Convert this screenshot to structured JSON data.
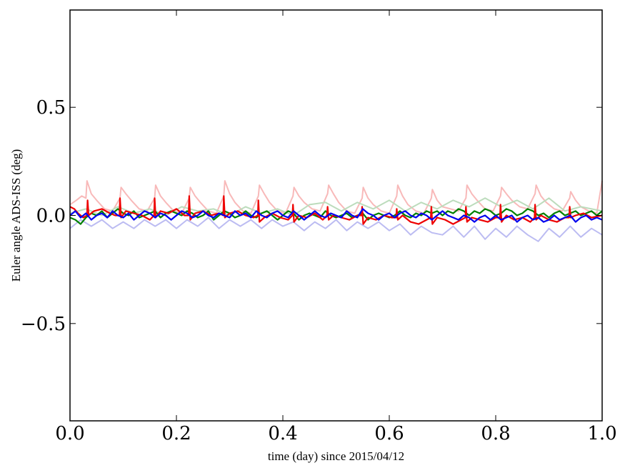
{
  "chart_data": {
    "type": "line",
    "title": "",
    "xlabel": "time (day) since 2015/04/12",
    "ylabel": "Euler angle ADS-ISS (deg)",
    "xlim": [
      0.0,
      1.0
    ],
    "ylim": [
      -0.95,
      0.95
    ],
    "xticks": [
      0.0,
      0.2,
      0.4,
      0.6,
      0.8,
      1.0
    ],
    "xtick_labels": [
      "0.0",
      "0.2",
      "0.4",
      "0.6",
      "0.8",
      "1.0"
    ],
    "yticks": [
      -0.5,
      0.0,
      0.5
    ],
    "ytick_labels": [
      "−0.5",
      "0.0",
      "0.5"
    ],
    "grid": false,
    "legend": "none",
    "series": [
      {
        "color": "#f8b9b9",
        "width": 2,
        "x": [
          0.0,
          0.012,
          0.022,
          0.03,
          0.032,
          0.04,
          0.05,
          0.065,
          0.08,
          0.094,
          0.096,
          0.105,
          0.115,
          0.13,
          0.145,
          0.159,
          0.161,
          0.17,
          0.18,
          0.195,
          0.21,
          0.224,
          0.226,
          0.235,
          0.245,
          0.26,
          0.275,
          0.289,
          0.291,
          0.3,
          0.31,
          0.325,
          0.34,
          0.354,
          0.356,
          0.365,
          0.375,
          0.39,
          0.405,
          0.419,
          0.421,
          0.43,
          0.44,
          0.455,
          0.47,
          0.484,
          0.486,
          0.495,
          0.505,
          0.52,
          0.535,
          0.549,
          0.551,
          0.56,
          0.57,
          0.585,
          0.6,
          0.614,
          0.616,
          0.625,
          0.635,
          0.65,
          0.665,
          0.679,
          0.681,
          0.69,
          0.7,
          0.715,
          0.73,
          0.744,
          0.746,
          0.755,
          0.765,
          0.78,
          0.795,
          0.809,
          0.811,
          0.82,
          0.83,
          0.845,
          0.86,
          0.874,
          0.876,
          0.885,
          0.895,
          0.91,
          0.925,
          0.939,
          0.941,
          0.95,
          0.96,
          0.975,
          0.99,
          1.0
        ],
        "y": [
          0.05,
          0.07,
          0.09,
          0.08,
          0.16,
          0.1,
          0.07,
          0.03,
          0.02,
          0.08,
          0.13,
          0.1,
          0.07,
          0.03,
          0.02,
          0.08,
          0.14,
          0.09,
          0.06,
          0.02,
          0.01,
          0.08,
          0.13,
          0.09,
          0.06,
          0.02,
          0.01,
          0.09,
          0.16,
          0.1,
          0.06,
          0.02,
          0.01,
          0.09,
          0.14,
          0.1,
          0.06,
          0.02,
          0.01,
          0.09,
          0.13,
          0.09,
          0.06,
          0.03,
          0.02,
          0.1,
          0.14,
          0.1,
          0.06,
          0.02,
          0.01,
          0.08,
          0.13,
          0.08,
          0.05,
          0.02,
          0.01,
          0.09,
          0.14,
          0.09,
          0.05,
          0.02,
          0.01,
          0.08,
          0.12,
          0.07,
          0.04,
          0.03,
          0.02,
          0.08,
          0.14,
          0.1,
          0.07,
          0.03,
          0.02,
          0.09,
          0.13,
          0.1,
          0.07,
          0.04,
          0.03,
          0.1,
          0.14,
          0.09,
          0.06,
          0.03,
          0.02,
          0.08,
          0.11,
          0.07,
          0.04,
          0.02,
          0.01,
          0.16
        ]
      },
      {
        "color": "#bcdcbc",
        "width": 2,
        "x": [
          0.0,
          0.03,
          0.06,
          0.09,
          0.12,
          0.15,
          0.18,
          0.21,
          0.24,
          0.27,
          0.3,
          0.33,
          0.36,
          0.39,
          0.42,
          0.45,
          0.48,
          0.51,
          0.54,
          0.57,
          0.6,
          0.63,
          0.66,
          0.69,
          0.72,
          0.75,
          0.78,
          0.81,
          0.84,
          0.87,
          0.9,
          0.93,
          0.96,
          1.0
        ],
        "y": [
          0.01,
          0.03,
          0.0,
          0.04,
          0.01,
          0.03,
          0.0,
          0.04,
          0.02,
          0.03,
          0.0,
          0.04,
          0.01,
          0.03,
          0.0,
          0.05,
          0.06,
          0.02,
          0.06,
          0.03,
          0.07,
          0.02,
          0.06,
          0.03,
          0.07,
          0.04,
          0.08,
          0.04,
          0.07,
          0.03,
          0.08,
          0.02,
          0.04,
          0.02
        ]
      },
      {
        "color": "#bcbcf2",
        "width": 2,
        "x": [
          0.0,
          0.02,
          0.04,
          0.06,
          0.08,
          0.1,
          0.12,
          0.14,
          0.16,
          0.18,
          0.2,
          0.22,
          0.24,
          0.26,
          0.28,
          0.3,
          0.32,
          0.34,
          0.36,
          0.38,
          0.4,
          0.42,
          0.44,
          0.46,
          0.48,
          0.5,
          0.52,
          0.54,
          0.56,
          0.58,
          0.6,
          0.62,
          0.64,
          0.66,
          0.68,
          0.7,
          0.72,
          0.74,
          0.76,
          0.78,
          0.8,
          0.82,
          0.84,
          0.86,
          0.88,
          0.9,
          0.92,
          0.94,
          0.96,
          0.98,
          1.0
        ],
        "y": [
          -0.06,
          -0.02,
          -0.05,
          -0.02,
          -0.06,
          -0.03,
          -0.06,
          -0.02,
          -0.05,
          -0.02,
          -0.06,
          -0.02,
          -0.05,
          -0.01,
          -0.06,
          -0.02,
          -0.05,
          -0.02,
          -0.06,
          -0.02,
          -0.05,
          -0.03,
          -0.07,
          -0.03,
          -0.06,
          -0.02,
          -0.07,
          -0.03,
          -0.06,
          -0.03,
          -0.07,
          -0.04,
          -0.09,
          -0.05,
          -0.08,
          -0.09,
          -0.05,
          -0.1,
          -0.05,
          -0.11,
          -0.06,
          -0.1,
          -0.05,
          -0.09,
          -0.12,
          -0.06,
          -0.1,
          -0.05,
          -0.1,
          -0.06,
          -0.09
        ]
      },
      {
        "color": "#008000",
        "width": 2.2,
        "x": [
          0.0,
          0.01,
          0.02,
          0.03,
          0.04,
          0.05,
          0.06,
          0.07,
          0.08,
          0.09,
          0.1,
          0.11,
          0.12,
          0.13,
          0.14,
          0.15,
          0.16,
          0.17,
          0.18,
          0.19,
          0.2,
          0.21,
          0.22,
          0.23,
          0.24,
          0.25,
          0.26,
          0.27,
          0.28,
          0.29,
          0.3,
          0.31,
          0.32,
          0.33,
          0.34,
          0.35,
          0.36,
          0.37,
          0.38,
          0.39,
          0.4,
          0.41,
          0.42,
          0.43,
          0.44,
          0.45,
          0.46,
          0.47,
          0.48,
          0.49,
          0.5,
          0.51,
          0.52,
          0.53,
          0.54,
          0.55,
          0.56,
          0.57,
          0.58,
          0.59,
          0.6,
          0.61,
          0.62,
          0.63,
          0.64,
          0.65,
          0.66,
          0.67,
          0.68,
          0.69,
          0.7,
          0.71,
          0.72,
          0.73,
          0.74,
          0.75,
          0.76,
          0.77,
          0.78,
          0.79,
          0.8,
          0.81,
          0.82,
          0.83,
          0.84,
          0.85,
          0.86,
          0.87,
          0.88,
          0.89,
          0.9,
          0.91,
          0.92,
          0.93,
          0.94,
          0.95,
          0.96,
          0.97,
          0.98,
          0.99,
          1.0
        ],
        "y": [
          -0.01,
          -0.02,
          -0.04,
          -0.01,
          0.01,
          0.0,
          0.02,
          -0.01,
          0.01,
          0.03,
          0.01,
          0.0,
          0.02,
          -0.01,
          0.0,
          0.01,
          0.02,
          -0.01,
          0.01,
          0.02,
          0.01,
          0.0,
          0.02,
          0.01,
          -0.01,
          0.0,
          0.02,
          -0.02,
          0.0,
          0.02,
          0.01,
          -0.01,
          0.0,
          0.02,
          0.0,
          -0.01,
          0.01,
          0.02,
          0.0,
          -0.02,
          0.0,
          0.02,
          0.01,
          -0.02,
          0.0,
          0.01,
          0.0,
          -0.01,
          0.02,
          0.0,
          -0.01,
          0.0,
          0.01,
          -0.01,
          0.0,
          0.01,
          -0.02,
          0.0,
          0.01,
          0.0,
          -0.01,
          0.0,
          0.02,
          0.0,
          -0.01,
          0.01,
          0.0,
          0.02,
          0.01,
          0.02,
          0.0,
          0.02,
          0.01,
          0.03,
          0.02,
          0.0,
          0.02,
          0.01,
          0.03,
          0.02,
          0.0,
          0.01,
          0.03,
          0.02,
          0.0,
          0.01,
          0.03,
          0.02,
          0.0,
          0.01,
          -0.01,
          0.01,
          0.02,
          0.0,
          0.01,
          0.02,
          0.0,
          0.01,
          0.02,
          0.0,
          0.02
        ]
      },
      {
        "color": "#ee0000",
        "width": 2.2,
        "x": [
          0.0,
          0.008,
          0.015,
          0.025,
          0.032,
          0.033,
          0.035,
          0.045,
          0.06,
          0.075,
          0.085,
          0.093,
          0.094,
          0.096,
          0.105,
          0.12,
          0.135,
          0.15,
          0.158,
          0.159,
          0.161,
          0.17,
          0.185,
          0.2,
          0.215,
          0.223,
          0.224,
          0.226,
          0.235,
          0.25,
          0.265,
          0.28,
          0.288,
          0.289,
          0.291,
          0.3,
          0.315,
          0.33,
          0.345,
          0.353,
          0.354,
          0.356,
          0.365,
          0.38,
          0.395,
          0.41,
          0.418,
          0.419,
          0.421,
          0.43,
          0.445,
          0.46,
          0.475,
          0.483,
          0.484,
          0.486,
          0.495,
          0.51,
          0.525,
          0.54,
          0.548,
          0.549,
          0.551,
          0.56,
          0.575,
          0.59,
          0.605,
          0.613,
          0.614,
          0.616,
          0.625,
          0.64,
          0.655,
          0.67,
          0.678,
          0.679,
          0.681,
          0.69,
          0.705,
          0.72,
          0.735,
          0.743,
          0.744,
          0.746,
          0.755,
          0.77,
          0.785,
          0.8,
          0.808,
          0.809,
          0.811,
          0.82,
          0.835,
          0.85,
          0.865,
          0.873,
          0.874,
          0.876,
          0.885,
          0.9,
          0.915,
          0.93,
          0.938,
          0.939,
          0.941,
          0.95,
          0.965,
          0.98,
          1.0
        ],
        "y": [
          0.04,
          0.03,
          0.01,
          -0.01,
          0.0,
          0.07,
          0.0,
          0.02,
          0.03,
          0.01,
          0.0,
          0.0,
          0.08,
          -0.01,
          0.02,
          0.01,
          0.0,
          -0.02,
          0.0,
          0.08,
          -0.01,
          0.02,
          0.01,
          0.03,
          0.0,
          0.0,
          0.09,
          -0.02,
          0.01,
          0.02,
          0.0,
          0.01,
          0.0,
          0.09,
          -0.01,
          0.01,
          0.02,
          0.0,
          -0.01,
          0.0,
          0.07,
          -0.03,
          -0.01,
          0.01,
          -0.01,
          -0.02,
          0.0,
          0.05,
          -0.03,
          0.0,
          -0.01,
          0.01,
          -0.02,
          0.0,
          0.04,
          -0.02,
          0.0,
          -0.01,
          -0.02,
          0.0,
          0.0,
          0.04,
          -0.04,
          -0.01,
          -0.02,
          0.0,
          -0.01,
          -0.01,
          0.03,
          -0.02,
          0.0,
          -0.03,
          -0.04,
          -0.02,
          -0.01,
          0.04,
          -0.04,
          -0.01,
          -0.02,
          -0.04,
          -0.02,
          -0.01,
          0.04,
          -0.03,
          -0.01,
          -0.02,
          -0.03,
          -0.01,
          -0.01,
          0.05,
          -0.03,
          0.0,
          -0.02,
          -0.01,
          -0.03,
          -0.01,
          0.05,
          -0.02,
          0.0,
          -0.02,
          -0.03,
          -0.01,
          -0.01,
          0.04,
          -0.01,
          0.0,
          0.01,
          -0.01,
          0.0
        ]
      },
      {
        "color": "#0000ee",
        "width": 2.2,
        "x": [
          0.0,
          0.01,
          0.02,
          0.03,
          0.04,
          0.05,
          0.06,
          0.07,
          0.08,
          0.09,
          0.1,
          0.11,
          0.12,
          0.13,
          0.14,
          0.15,
          0.16,
          0.17,
          0.18,
          0.19,
          0.2,
          0.21,
          0.22,
          0.23,
          0.24,
          0.25,
          0.26,
          0.27,
          0.28,
          0.29,
          0.3,
          0.31,
          0.32,
          0.33,
          0.34,
          0.35,
          0.36,
          0.37,
          0.38,
          0.39,
          0.4,
          0.41,
          0.42,
          0.43,
          0.44,
          0.45,
          0.46,
          0.47,
          0.48,
          0.49,
          0.5,
          0.51,
          0.52,
          0.53,
          0.54,
          0.55,
          0.56,
          0.57,
          0.58,
          0.59,
          0.6,
          0.61,
          0.62,
          0.63,
          0.64,
          0.65,
          0.66,
          0.67,
          0.68,
          0.69,
          0.7,
          0.71,
          0.72,
          0.73,
          0.74,
          0.75,
          0.76,
          0.77,
          0.78,
          0.79,
          0.8,
          0.81,
          0.82,
          0.83,
          0.84,
          0.85,
          0.86,
          0.87,
          0.88,
          0.89,
          0.9,
          0.91,
          0.92,
          0.93,
          0.94,
          0.95,
          0.96,
          0.97,
          0.98,
          0.99,
          1.0
        ],
        "y": [
          0.0,
          0.02,
          -0.01,
          0.01,
          -0.02,
          0.0,
          0.01,
          -0.01,
          0.02,
          0.0,
          -0.01,
          0.01,
          -0.02,
          0.0,
          0.02,
          0.01,
          -0.01,
          0.01,
          0.0,
          -0.02,
          0.0,
          0.02,
          0.01,
          -0.01,
          0.0,
          0.02,
          0.0,
          -0.01,
          0.01,
          0.0,
          -0.01,
          0.02,
          0.0,
          0.01,
          -0.01,
          0.02,
          0.0,
          -0.01,
          0.01,
          0.02,
          0.0,
          -0.01,
          0.02,
          0.0,
          -0.02,
          0.0,
          0.02,
          0.0,
          -0.01,
          0.01,
          0.0,
          -0.01,
          0.02,
          0.0,
          -0.01,
          0.03,
          0.01,
          0.0,
          -0.02,
          0.0,
          0.01,
          -0.01,
          0.01,
          0.02,
          0.0,
          -0.01,
          0.01,
          0.0,
          -0.02,
          0.0,
          0.02,
          0.0,
          -0.01,
          -0.02,
          0.0,
          -0.01,
          -0.03,
          -0.01,
          0.0,
          -0.02,
          0.0,
          -0.02,
          -0.01,
          0.0,
          -0.03,
          -0.01,
          0.0,
          -0.02,
          -0.01,
          -0.03,
          -0.02,
          0.0,
          -0.02,
          -0.01,
          0.0,
          -0.03,
          -0.01,
          0.0,
          -0.02,
          -0.01,
          -0.02
        ]
      }
    ]
  }
}
